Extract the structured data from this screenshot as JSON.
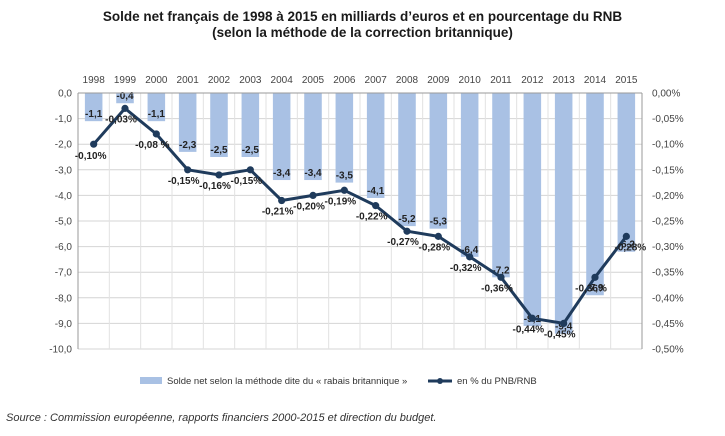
{
  "chart_data": {
    "type": "bar+line",
    "title": "Solde net français de 1998 à 2015 en milliards d’euros et en pourcentage du RNB",
    "subtitle": "(selon la méthode de la correction britannique)",
    "categories": [
      "1998",
      "1999",
      "2000",
      "2001",
      "2002",
      "2003",
      "2004",
      "2005",
      "2006",
      "2007",
      "2008",
      "2009",
      "2010",
      "2011",
      "2012",
      "2013",
      "2014",
      "2015"
    ],
    "bar_series": {
      "name": "Solde net selon la méthode dite du « rabais britannique »",
      "values": [
        -1.1,
        -0.4,
        -1.1,
        -2.3,
        -2.5,
        -2.5,
        -3.4,
        -3.4,
        -3.5,
        -4.1,
        -5.2,
        -5.3,
        -6.4,
        -7.2,
        -9.1,
        -9.4,
        -7.9,
        -6.2
      ],
      "labels": [
        "-1,1",
        "-0,4",
        "-1,1",
        "-2,3",
        "-2,5",
        "-2,5",
        "-3,4",
        "-3,4",
        "-3,5",
        "-4,1",
        "-5,2",
        "-5,3",
        "-6,4",
        "-7,2",
        "-9,1",
        "-9,4",
        "-7,9",
        "-6,2"
      ],
      "color": "#a9c1e4"
    },
    "line_series": {
      "name": "en % du PNB/RNB",
      "values": [
        -0.1,
        -0.03,
        -0.08,
        -0.15,
        -0.16,
        -0.15,
        -0.21,
        -0.2,
        -0.19,
        -0.22,
        -0.27,
        -0.28,
        -0.32,
        -0.36,
        -0.44,
        -0.45,
        -0.36,
        -0.28
      ],
      "labels": [
        "-0,10%",
        "-0,03%",
        "-0,08 %",
        "-0,15%",
        "-0,16%",
        "-0,15%",
        "-0,21%",
        "-0,20%",
        "-0,19%",
        "-0,22%",
        "-0,27%",
        "-0,28%",
        "-0,32%",
        "-0,36%",
        "-0,44%",
        "-0,45%",
        "-0,36%",
        "-0,28%"
      ],
      "color": "#1f3b5c"
    },
    "y_left": {
      "range": [
        -10,
        0
      ],
      "ticks": [
        "0,0",
        "-1,0",
        "-2,0",
        "-3,0",
        "-4,0",
        "-5,0",
        "-6,0",
        "-7,0",
        "-8,0",
        "-9,0",
        "-10,0"
      ]
    },
    "y_right": {
      "range": [
        -0.5,
        0
      ],
      "ticks": [
        "0,00%",
        "-0,05%",
        "-0,10%",
        "-0,15%",
        "-0,20%",
        "-0,25%",
        "-0,30%",
        "-0,35%",
        "-0,40%",
        "-0,45%",
        "-0,50%"
      ]
    },
    "grid": true,
    "legend_position": "bottom"
  },
  "source": "Source : Commission européenne, rapports financiers 2000-2015 et direction du budget."
}
